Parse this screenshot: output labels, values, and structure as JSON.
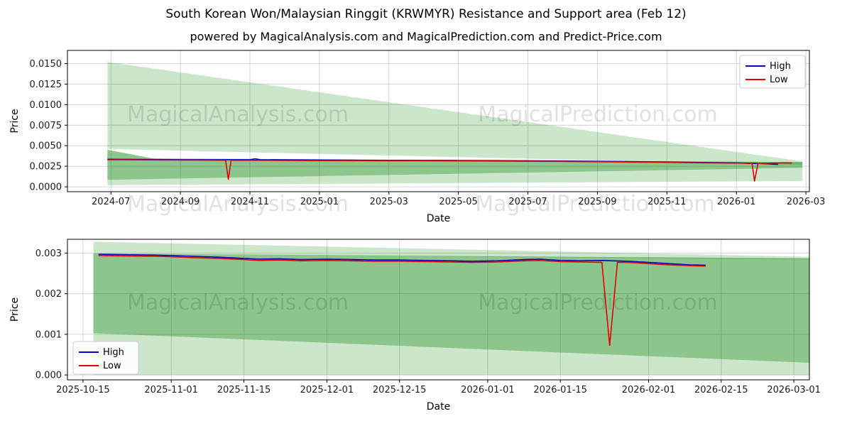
{
  "figure": {
    "title": "South Korean Won/Malaysian Ringgit (KRWMYR) Resistance and Support area (Feb 12)",
    "subtitle": "powered by MagicalAnalysis.com and MagicalPrediction.com and Predict-Price.com",
    "watermark_texts": [
      "MagicalAnalysis.com",
      "MagicalPrediction.com"
    ]
  },
  "colors": {
    "high": "#0000cd",
    "low": "#e60000",
    "band_light": "rgba(0,128,0,0.20)",
    "band_dark": "rgba(0,128,0,0.45)",
    "grid": "#c9c9c9",
    "axis": "#000000",
    "tick_label": "#1a1a1a",
    "watermark": "rgba(0,0,0,0.12)",
    "legend_border": "#cccccc"
  },
  "chart_data": [
    {
      "type": "line",
      "xlabel": "Date",
      "ylabel": "Price",
      "xlim": [
        -0.25,
        21.1
      ],
      "ylim": [
        -0.0006,
        0.0166
      ],
      "grid": true,
      "legend_position": "upper-right",
      "xticks": [
        {
          "v": 1,
          "label": "2024-07"
        },
        {
          "v": 3,
          "label": "2024-09"
        },
        {
          "v": 5,
          "label": "2024-11"
        },
        {
          "v": 7,
          "label": "2025-01"
        },
        {
          "v": 9,
          "label": "2025-03"
        },
        {
          "v": 11,
          "label": "2025-05"
        },
        {
          "v": 13,
          "label": "2025-07"
        },
        {
          "v": 15,
          "label": "2025-09"
        },
        {
          "v": 17,
          "label": "2025-11"
        },
        {
          "v": 19,
          "label": "2026-01"
        },
        {
          "v": 21,
          "label": "2026-03"
        }
      ],
      "yticks": [
        {
          "v": 0.0,
          "label": "0.0000"
        },
        {
          "v": 0.0025,
          "label": "0.0025"
        },
        {
          "v": 0.005,
          "label": "0.0050"
        },
        {
          "v": 0.0075,
          "label": "0.0075"
        },
        {
          "v": 0.01,
          "label": "0.0100"
        },
        {
          "v": 0.0125,
          "label": "0.0125"
        },
        {
          "v": 0.015,
          "label": "0.0150"
        }
      ],
      "series": [
        {
          "name": "High",
          "color_key": "high",
          "points": [
            [
              0.9,
              0.00335
            ],
            [
              2,
              0.00332
            ],
            [
              3,
              0.0033
            ],
            [
              4,
              0.0033
            ],
            [
              5,
              0.0033
            ],
            [
              5.15,
              0.0034
            ],
            [
              5.3,
              0.0033
            ],
            [
              6,
              0.00328
            ],
            [
              7,
              0.00326
            ],
            [
              8,
              0.00324
            ],
            [
              9,
              0.00322
            ],
            [
              10,
              0.00321
            ],
            [
              11,
              0.0032
            ],
            [
              12,
              0.00319
            ],
            [
              13,
              0.00317
            ],
            [
              14,
              0.00314
            ],
            [
              15,
              0.0031
            ],
            [
              16,
              0.00306
            ],
            [
              17,
              0.00301
            ],
            [
              18,
              0.00296
            ],
            [
              19,
              0.00291
            ],
            [
              19.4,
              0.00287
            ],
            [
              19.8,
              0.00281
            ],
            [
              20.2,
              0.00272
            ]
          ]
        },
        {
          "name": "Low",
          "color_key": "low",
          "points": [
            [
              0.9,
              0.00329
            ],
            [
              2,
              0.00327
            ],
            [
              3,
              0.00325
            ],
            [
              4,
              0.00323
            ],
            [
              4.3,
              0.00322
            ],
            [
              4.38,
              0.0009
            ],
            [
              4.46,
              0.00322
            ],
            [
              5,
              0.00322
            ],
            [
              6,
              0.0032
            ],
            [
              7,
              0.00319
            ],
            [
              8,
              0.00318
            ],
            [
              9,
              0.00317
            ],
            [
              10,
              0.00316
            ],
            [
              11,
              0.00315
            ],
            [
              12,
              0.00313
            ],
            [
              13,
              0.00311
            ],
            [
              14,
              0.00309
            ],
            [
              15,
              0.00305
            ],
            [
              16,
              0.00301
            ],
            [
              17,
              0.00297
            ],
            [
              18,
              0.00292
            ],
            [
              19,
              0.00288
            ],
            [
              19.45,
              0.00284
            ],
            [
              19.52,
              0.0007
            ],
            [
              19.62,
              0.00284
            ],
            [
              19.9,
              0.00286
            ],
            [
              20.3,
              0.00289
            ],
            [
              20.6,
              0.00289
            ]
          ]
        }
      ],
      "bands": [
        {
          "name": "resistance-wedge-upper",
          "color_key": "band_light",
          "points": [
            [
              0.9,
              0.0152
            ],
            [
              20.9,
              0.0031
            ],
            [
              20.9,
              0.00265
            ],
            [
              5,
              0.0042
            ],
            [
              0.9,
              0.0046
            ]
          ]
        },
        {
          "name": "support-band-dark",
          "color_key": "band_dark",
          "points": [
            [
              0.9,
              0.0045
            ],
            [
              2.2,
              0.00345
            ],
            [
              20.9,
              0.003
            ],
            [
              20.9,
              0.0023
            ],
            [
              0.9,
              0.00085
            ]
          ]
        },
        {
          "name": "support-wedge-lower",
          "color_key": "band_light",
          "points": [
            [
              0.9,
              0.00085
            ],
            [
              20.9,
              0.0023
            ],
            [
              20.9,
              0.0007
            ],
            [
              0.9,
              0.0002
            ]
          ]
        }
      ]
    },
    {
      "type": "line",
      "xlabel": "Date",
      "ylabel": "Price",
      "xlim": [
        -3,
        140
      ],
      "ylim": [
        -0.00012,
        0.00334
      ],
      "grid": true,
      "legend_position": "lower-left",
      "xticks": [
        {
          "v": 0,
          "label": "2025-10-15"
        },
        {
          "v": 17,
          "label": "2025-11-01"
        },
        {
          "v": 31,
          "label": "2025-11-15"
        },
        {
          "v": 47,
          "label": "2025-12-01"
        },
        {
          "v": 61,
          "label": "2025-12-15"
        },
        {
          "v": 78,
          "label": "2026-01-01"
        },
        {
          "v": 92,
          "label": "2026-01-15"
        },
        {
          "v": 109,
          "label": "2026-02-01"
        },
        {
          "v": 123,
          "label": "2026-02-15"
        },
        {
          "v": 137,
          "label": "2026-03-01"
        }
      ],
      "yticks": [
        {
          "v": 0.0,
          "label": "0.000"
        },
        {
          "v": 0.001,
          "label": "0.001"
        },
        {
          "v": 0.002,
          "label": "0.002"
        },
        {
          "v": 0.003,
          "label": "0.003"
        }
      ],
      "series": [
        {
          "name": "High",
          "color_key": "high",
          "points": [
            [
              3,
              0.00297
            ],
            [
              8,
              0.00296
            ],
            [
              14,
              0.00295
            ],
            [
              17,
              0.00294
            ],
            [
              21,
              0.00292
            ],
            [
              26,
              0.0029
            ],
            [
              31,
              0.00287
            ],
            [
              34,
              0.00285
            ],
            [
              38,
              0.00286
            ],
            [
              42,
              0.00284
            ],
            [
              47,
              0.00285
            ],
            [
              52,
              0.00284
            ],
            [
              56,
              0.00283
            ],
            [
              61,
              0.00283
            ],
            [
              66,
              0.00282
            ],
            [
              71,
              0.00281
            ],
            [
              75,
              0.0028
            ],
            [
              80,
              0.00281
            ],
            [
              85,
              0.00284
            ],
            [
              88,
              0.00285
            ],
            [
              92,
              0.00282
            ],
            [
              96,
              0.00281
            ],
            [
              100,
              0.00282
            ],
            [
              102,
              0.00281
            ],
            [
              105,
              0.0028
            ],
            [
              109,
              0.00277
            ],
            [
              113,
              0.00274
            ],
            [
              117,
              0.00271
            ],
            [
              120,
              0.0027
            ]
          ]
        },
        {
          "name": "Low",
          "color_key": "low",
          "points": [
            [
              3,
              0.00294
            ],
            [
              8,
              0.00293
            ],
            [
              14,
              0.00292
            ],
            [
              17,
              0.00291
            ],
            [
              21,
              0.00289
            ],
            [
              26,
              0.00287
            ],
            [
              31,
              0.00284
            ],
            [
              34,
              0.00282
            ],
            [
              38,
              0.00283
            ],
            [
              42,
              0.00281
            ],
            [
              47,
              0.00282
            ],
            [
              52,
              0.00281
            ],
            [
              56,
              0.0028
            ],
            [
              61,
              0.0028
            ],
            [
              66,
              0.00279
            ],
            [
              71,
              0.00278
            ],
            [
              75,
              0.00277
            ],
            [
              80,
              0.00278
            ],
            [
              85,
              0.00281
            ],
            [
              88,
              0.00282
            ],
            [
              92,
              0.00279
            ],
            [
              96,
              0.00278
            ],
            [
              100,
              0.00277
            ],
            [
              101.5,
              0.00073
            ],
            [
              103,
              0.00277
            ],
            [
              105,
              0.00277
            ],
            [
              109,
              0.00274
            ],
            [
              113,
              0.00271
            ],
            [
              117,
              0.00269
            ],
            [
              120,
              0.00268
            ]
          ]
        }
      ],
      "bands": [
        {
          "name": "resistance-band-upper",
          "color_key": "band_light",
          "points": [
            [
              2,
              0.00328
            ],
            [
              140,
              0.00291
            ],
            [
              140,
              0.00284
            ],
            [
              2,
              0.00299
            ]
          ]
        },
        {
          "name": "support-band-dark",
          "color_key": "band_dark",
          "points": [
            [
              2,
              0.00299
            ],
            [
              140,
              0.00287
            ],
            [
              140,
              0.0003
            ],
            [
              2,
              0.00103
            ]
          ]
        },
        {
          "name": "support-wedge-lower",
          "color_key": "band_light",
          "points": [
            [
              2,
              0.00103
            ],
            [
              140,
              0.0003
            ],
            [
              140,
              0.0
            ],
            [
              2,
              0.0
            ]
          ]
        }
      ]
    }
  ]
}
